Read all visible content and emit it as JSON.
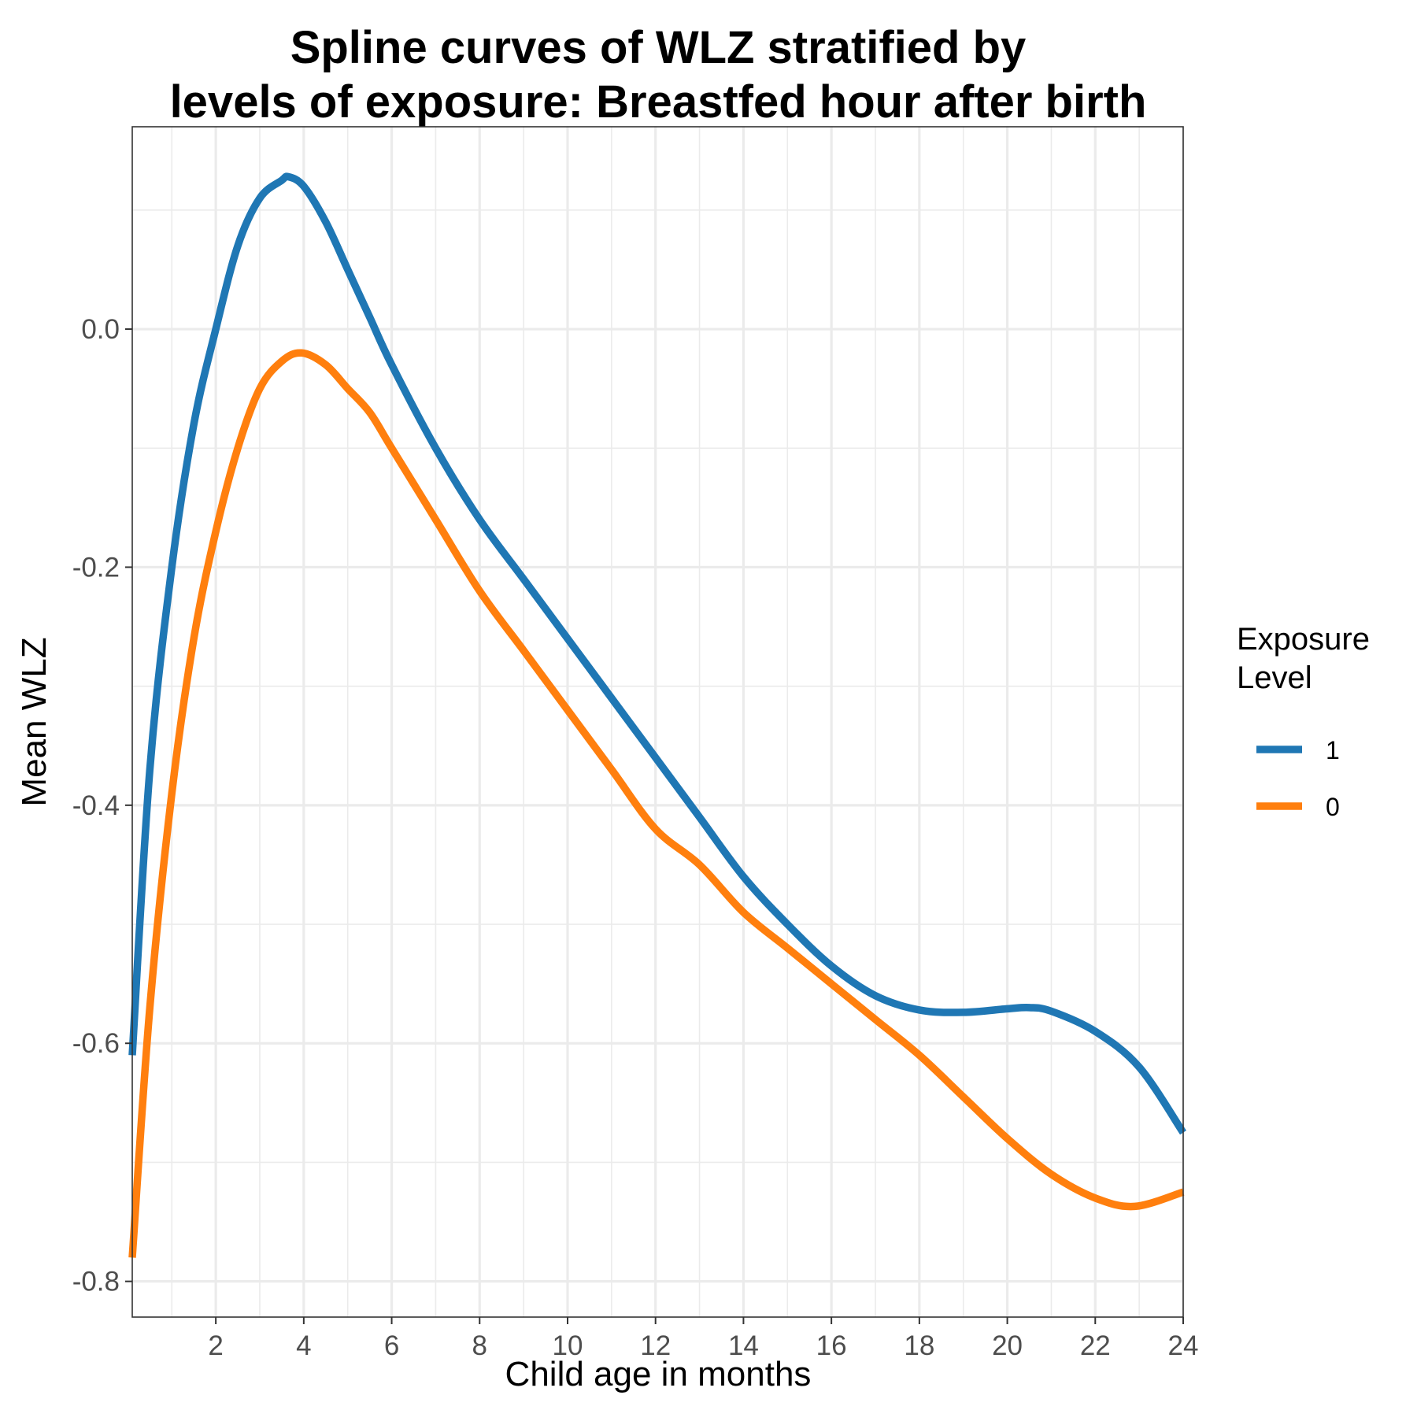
{
  "chart_data": {
    "type": "line",
    "title_lines": [
      "Spline curves of WLZ stratified by",
      "levels of exposure: Breastfed hour after birth"
    ],
    "xlabel": "Child age in months",
    "ylabel": "Mean WLZ",
    "xlim": [
      0.1,
      24
    ],
    "ylim": [
      -0.83,
      0.17
    ],
    "x_ticks": [
      2,
      4,
      6,
      8,
      10,
      12,
      14,
      16,
      18,
      20,
      22,
      24
    ],
    "x_tick_labels": [
      "2",
      "4",
      "6",
      "8",
      "10",
      "12",
      "14",
      "16",
      "18",
      "20",
      "22",
      "24"
    ],
    "y_ticks": [
      -0.8,
      -0.6,
      -0.4,
      -0.2,
      0.0
    ],
    "y_tick_labels": [
      "-0.8",
      "-0.6",
      "-0.4",
      "-0.2",
      "0.0"
    ],
    "grid": true,
    "legend": {
      "title_lines": [
        "Exposure",
        "Level"
      ],
      "position": "right"
    },
    "series": [
      {
        "name": "1",
        "color": "#1f77b4",
        "x": [
          0.1,
          0.5,
          1,
          1.5,
          2,
          2.5,
          3,
          3.5,
          3.65,
          4,
          4.5,
          5,
          5.5,
          6,
          7,
          8,
          9,
          10,
          11,
          12,
          13,
          14,
          15,
          16,
          17,
          18,
          19,
          20,
          20.5,
          21,
          22,
          23,
          24
        ],
        "y": [
          -0.61,
          -0.37,
          -0.2,
          -0.08,
          0.0,
          0.07,
          0.11,
          0.125,
          0.128,
          0.12,
          0.09,
          0.05,
          0.01,
          -0.03,
          -0.1,
          -0.16,
          -0.21,
          -0.26,
          -0.31,
          -0.36,
          -0.41,
          -0.46,
          -0.5,
          -0.535,
          -0.56,
          -0.572,
          -0.574,
          -0.571,
          -0.57,
          -0.573,
          -0.59,
          -0.62,
          -0.675
        ]
      },
      {
        "name": "0",
        "color": "#ff7f0e",
        "x": [
          0.1,
          0.5,
          1,
          1.5,
          2,
          2.5,
          3,
          3.5,
          3.95,
          4.5,
          5,
          5.5,
          6,
          7,
          8,
          9,
          10,
          11,
          12,
          13,
          14,
          15,
          16,
          17,
          18,
          19,
          20,
          21,
          22,
          22.9,
          24
        ],
        "y": [
          -0.78,
          -0.57,
          -0.39,
          -0.26,
          -0.17,
          -0.1,
          -0.05,
          -0.027,
          -0.02,
          -0.03,
          -0.05,
          -0.07,
          -0.1,
          -0.16,
          -0.22,
          -0.27,
          -0.32,
          -0.37,
          -0.42,
          -0.45,
          -0.49,
          -0.52,
          -0.55,
          -0.58,
          -0.61,
          -0.645,
          -0.68,
          -0.71,
          -0.73,
          -0.737,
          -0.725
        ]
      }
    ]
  }
}
